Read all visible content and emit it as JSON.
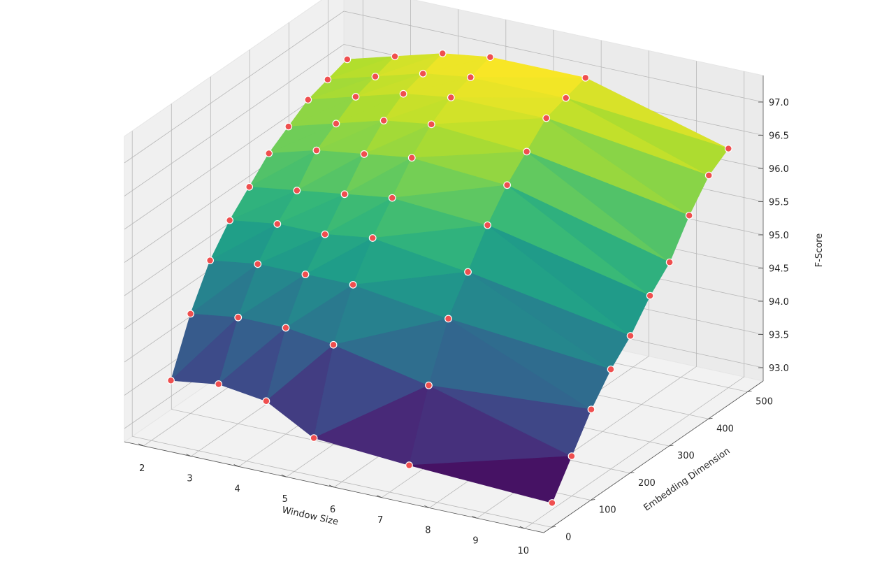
{
  "chart_data": {
    "type": "surface3d",
    "title": "",
    "xlabel": "Window Size",
    "ylabel": "Embedding Dimension",
    "zlabel": "F-Score",
    "x_ticks": [
      2,
      3,
      4,
      5,
      6,
      7,
      8,
      9,
      10
    ],
    "y_ticks": [
      0,
      100,
      200,
      300,
      400,
      500
    ],
    "z_ticks": [
      "93.0",
      "93.5",
      "94.0",
      "94.5",
      "95.0",
      "95.5",
      "96.0",
      "96.5",
      "97.0"
    ],
    "xlim": [
      1.6,
      10.4
    ],
    "ylim": [
      -20,
      540
    ],
    "zlim": [
      92.8,
      97.4
    ],
    "colormap": "viridis",
    "grid": true,
    "marker_color": "#ef4f4f",
    "window_sizes": [
      2,
      3,
      4,
      5,
      7,
      10
    ],
    "embedding_dims": [
      50,
      100,
      150,
      200,
      250,
      300,
      350,
      400,
      450,
      500
    ],
    "fscore": [
      [
        93.5,
        94.3,
        94.9,
        95.3,
        95.6,
        95.9,
        96.1,
        96.3,
        96.4,
        96.5
      ],
      [
        93.6,
        94.4,
        95.0,
        95.4,
        95.7,
        96.1,
        96.3,
        96.5,
        96.6,
        96.7
      ],
      [
        93.5,
        94.4,
        95.0,
        95.4,
        95.8,
        96.2,
        96.5,
        96.7,
        96.8,
        96.9
      ],
      [
        93.1,
        94.3,
        95.0,
        95.5,
        95.9,
        96.3,
        96.6,
        96.8,
        96.9,
        97.0
      ],
      [
        93.0,
        94.0,
        94.8,
        95.3,
        95.8,
        96.2,
        96.5,
        96.8,
        96.9,
        97.0
      ],
      [
        92.9,
        93.4,
        93.9,
        94.3,
        94.6,
        95.0,
        95.3,
        95.8,
        96.2,
        96.4
      ]
    ]
  }
}
